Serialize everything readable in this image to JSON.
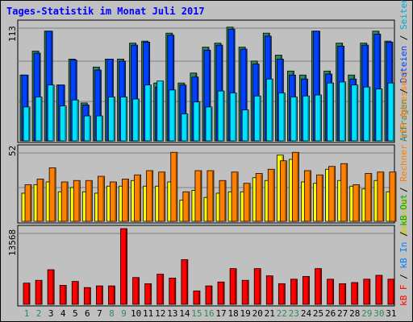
{
  "title": "Tages-Statistik im Monat Juli 2017",
  "colors": {
    "background": "#c0c0c0",
    "title": "#0000ff",
    "weekday": "#006600",
    "weekend": "#2e8b57",
    "hits": "#2e8b57",
    "files": "#0040ff",
    "pages": "#00e0ff",
    "visits": "#ffff00",
    "sites": "#ff8000",
    "kbytes": "#ff0000"
  },
  "legend": {
    "top": [
      {
        "text": "Anfragen",
        "color": "#2e8b57"
      },
      {
        "text": "Dateien",
        "color": "#0040ff"
      },
      {
        "text": "Seiten",
        "color": "#00aacc"
      }
    ],
    "middle": [
      {
        "text": "Besuche",
        "color": "#cccc00"
      },
      {
        "text": "Rechner (IP-Adressen)",
        "color": "#ff8000"
      }
    ],
    "bottom": [
      {
        "text": "kB F",
        "color": "#ff0000"
      },
      {
        "text": "kB In",
        "color": "#0080ff"
      },
      {
        "text": "kB Out",
        "color": "#00aa00"
      }
    ]
  },
  "chart_data": {
    "type": "bar",
    "title": "Tages-Statistik im Monat Juli 2017",
    "categories": [
      "1",
      "2",
      "3",
      "4",
      "5",
      "6",
      "7",
      "8",
      "9",
      "10",
      "11",
      "12",
      "13",
      "14",
      "15",
      "16",
      "17",
      "18",
      "19",
      "20",
      "21",
      "22",
      "23",
      "24",
      "25",
      "26",
      "27",
      "28",
      "29",
      "30",
      "31"
    ],
    "weekend_days": [
      "1",
      "2",
      "8",
      "9",
      "15",
      "16",
      "22",
      "23",
      "29",
      "30"
    ],
    "panels": [
      {
        "name": "requests",
        "ymax_label": "113",
        "ylim": [
          0,
          113
        ],
        "series": [
          {
            "name": "Anfragen",
            "values": [
              66,
              90,
              110,
              56,
              82,
              38,
              74,
              82,
              82,
              98,
              100,
              58,
              108,
              58,
              68,
              94,
              98,
              114,
              94,
              80,
              108,
              86,
              70,
              66,
              110,
              70,
              98,
              66,
              98,
              110,
              100
            ]
          },
          {
            "name": "Dateien",
            "values": [
              66,
              88,
              110,
              56,
              81,
              36,
              71,
              82,
              80,
              96,
              99,
              54,
              106,
              56,
              64,
              91,
              96,
              112,
              92,
              77,
              105,
              82,
              66,
              62,
              110,
              67,
              95,
              62,
              96,
              107,
              99
            ]
          },
          {
            "name": "Seiten",
            "values": [
              34,
              44,
              56,
              35,
              41,
              25,
              25,
              44,
              44,
              42,
              56,
              60,
              51,
              27,
              39,
              34,
              50,
              48,
              31,
              45,
              62,
              48,
              44,
              45,
              46,
              58,
              59,
              56,
              54,
              52,
              58
            ]
          }
        ]
      },
      {
        "name": "visits_sites",
        "ymax_label": "52",
        "ylim": [
          0,
          52
        ],
        "series": [
          {
            "name": "Besuche",
            "values": [
              20,
              26,
              28,
              21,
              24,
              21,
              20,
              25,
              25,
              29,
              25,
              25,
              28,
              15,
              22,
              17,
              20,
              21,
              21,
              31,
              29,
              47,
              44,
              28,
              27,
              37,
              29,
              25,
              23,
              29,
              21
            ]
          },
          {
            "name": "Rechner (IP-Adressen)",
            "values": [
              26,
              30,
              38,
              28,
              29,
              29,
              32,
              28,
              30,
              33,
              36,
              35,
              49,
              21,
              36,
              36,
              29,
              35,
              27,
              34,
              37,
              43,
              49,
              36,
              33,
              39,
              41,
              26,
              34,
              35,
              35
            ]
          }
        ]
      },
      {
        "name": "kbytes",
        "ymax_label": "13568",
        "ylim": [
          0,
          13568
        ],
        "series": [
          {
            "name": "kB F",
            "values": [
              3800,
              4300,
              6200,
              3400,
              4100,
              3000,
              3300,
              3300,
              13568,
              4800,
              3700,
              5400,
              4700,
              8000,
              2400,
              3300,
              4000,
              6400,
              4300,
              6400,
              5100,
              3700,
              4500,
              5000,
              6400,
              4500,
              3700,
              3900,
              4500,
              5200,
              4500
            ]
          }
        ]
      }
    ]
  }
}
